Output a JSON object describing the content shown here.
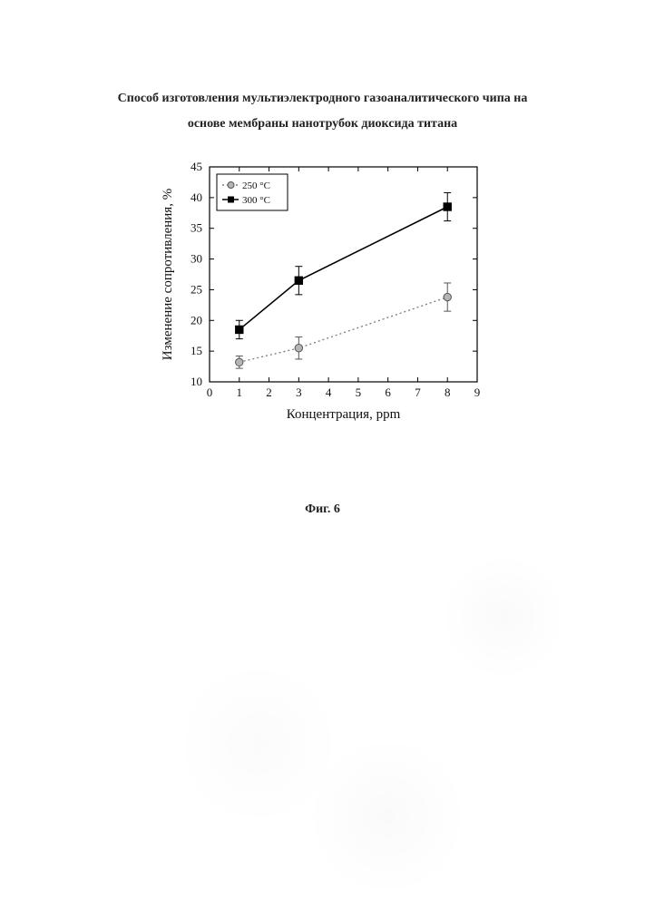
{
  "title": {
    "line1": "Способ изготовления мультиэлектродного газоаналитического чипа на",
    "line2": "основе мембраны нанотрубок диоксида титана"
  },
  "caption": "Фиг. 6",
  "chart": {
    "type": "line",
    "xlabel": "Концентрация, ppm",
    "ylabel": "Изменение сопротивления, %",
    "label_fontsize": 15,
    "tick_fontsize": 13,
    "xlim": [
      0,
      9
    ],
    "ylim": [
      10,
      45
    ],
    "xtick_step": 1,
    "ytick_step": 5,
    "background_color": "#ffffff",
    "axis_color": "#000000",
    "axis_width": 1.2,
    "legend": {
      "position": "top-left",
      "border_color": "#000000",
      "items": [
        {
          "label": "250 °C",
          "marker": "circle",
          "color": "#7a7a7a"
        },
        {
          "label": "300 °C",
          "marker": "square",
          "color": "#000000"
        }
      ]
    },
    "series": [
      {
        "name": "250C",
        "color": "#7a7a7a",
        "line_width": 1.3,
        "dash": "2,3",
        "marker": "circle",
        "marker_fill": "#b5b5b5",
        "marker_stroke": "#555555",
        "marker_size": 4.2,
        "points": [
          {
            "x": 1,
            "y": 13.2,
            "err": 1.0
          },
          {
            "x": 3,
            "y": 15.5,
            "err": 1.8
          },
          {
            "x": 8,
            "y": 23.8,
            "err": 2.3
          }
        ]
      },
      {
        "name": "300C",
        "color": "#000000",
        "line_width": 1.6,
        "dash": "",
        "marker": "square",
        "marker_fill": "#000000",
        "marker_stroke": "#000000",
        "marker_size": 4.2,
        "points": [
          {
            "x": 1,
            "y": 18.5,
            "err": 1.5
          },
          {
            "x": 3,
            "y": 26.5,
            "err": 2.3
          },
          {
            "x": 8,
            "y": 38.5,
            "err": 2.3
          }
        ]
      }
    ]
  }
}
